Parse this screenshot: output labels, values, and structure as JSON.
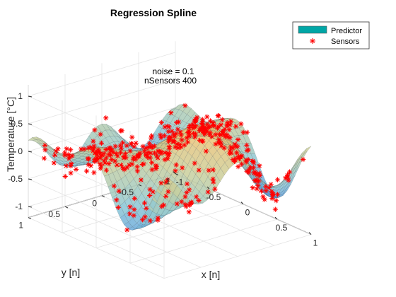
{
  "chart_data": {
    "type": "surface3d",
    "title": "Regression Spline",
    "xlabel": "x [n]",
    "ylabel": "y [n]",
    "zlabel": "Temperature [°C]",
    "xlim": [
      -1,
      1
    ],
    "ylim": [
      -1,
      1
    ],
    "zlim": [
      -1.2,
      1.2
    ],
    "x_ticks": [
      "-1",
      "-0.5",
      "0",
      "0.5",
      "1"
    ],
    "y_ticks": [
      "-1",
      "-0.5",
      "0",
      "0.5",
      "1"
    ],
    "z_ticks": [
      "-1",
      "-0.5",
      "0",
      "0.5",
      "1"
    ],
    "grid": true,
    "annotation": [
      "noise = 0.1",
      "nSensors 400"
    ],
    "legend": {
      "placement": "top-right",
      "entries": [
        {
          "label": "Predictor",
          "color": "#00a6a6",
          "marker": "patch"
        },
        {
          "label": "Sensors",
          "color": "#ff0000",
          "marker": "asterisk"
        }
      ]
    },
    "surface": {
      "function": "0.5*sin(pi*x)*cos(pi*y) + 0.3*cos(2*pi*x*y) + 0.2*x + 0.1*y",
      "colormap": [
        "#4a90e0",
        "#8ec8d4",
        "#c9cf9c",
        "#f0c070"
      ]
    },
    "sensors": {
      "count": 400,
      "noise": 0.1,
      "color": "#ff0000"
    }
  }
}
